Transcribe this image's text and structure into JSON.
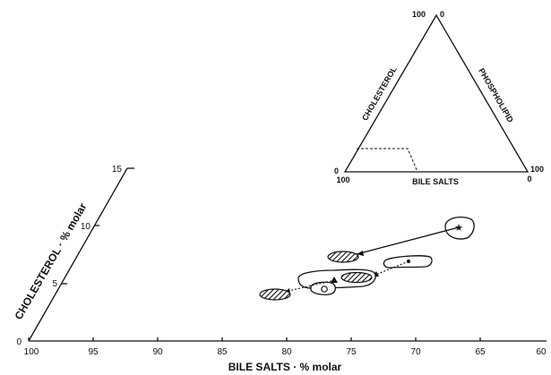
{
  "main": {
    "xlabel": "BILE SALTS · % molar",
    "ylabel": "CHOLESTEROL · % molar",
    "x_ticks": [
      "100",
      "95",
      "90",
      "85",
      "80",
      "75",
      "70",
      "65",
      "60"
    ],
    "y_ticks": [
      "0",
      "5",
      "10",
      "15"
    ]
  },
  "inset": {
    "left_label": "CHOLESTEROL",
    "right_label": "PHOSPHOLIPID",
    "bottom_label": "BILE SALTS",
    "apex_left": "100",
    "apex_right": "0",
    "left_corner_top": "0",
    "left_corner_bottom": "100",
    "right_corner_top": "100",
    "right_corner_bottom": "0"
  }
}
